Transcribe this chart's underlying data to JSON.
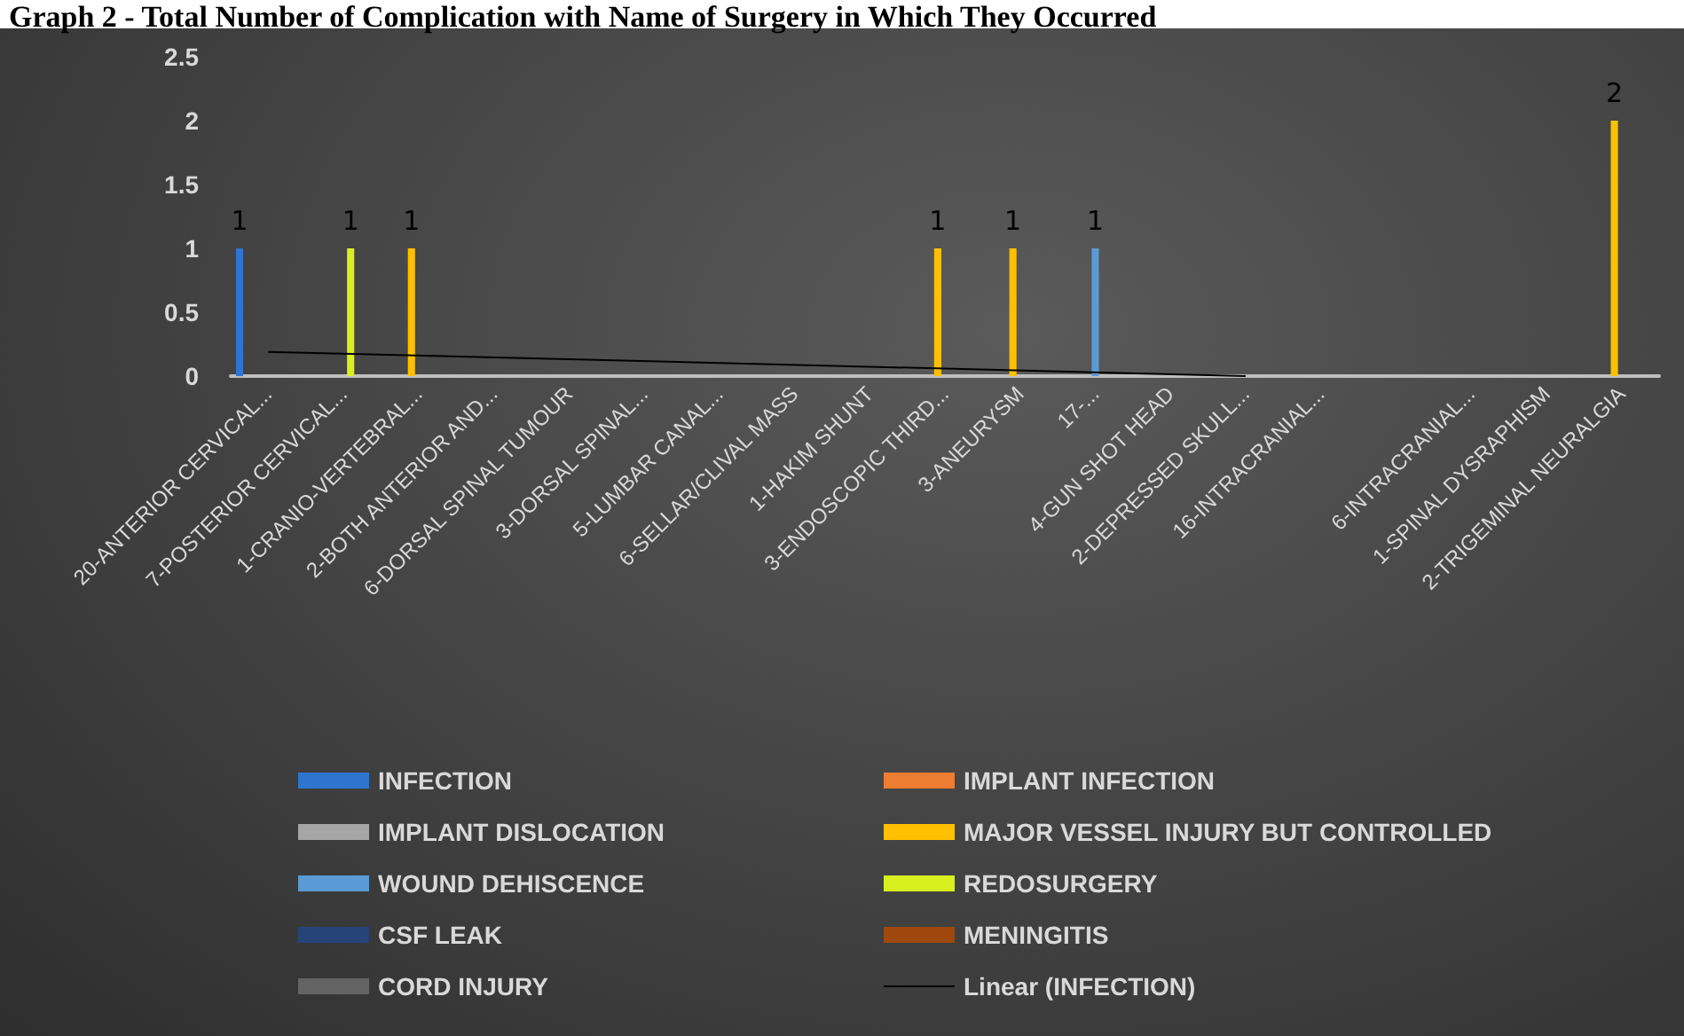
{
  "chart_data": {
    "type": "bar",
    "title": "Graph 2 - Total Number of Complication with Name of Surgery in Which They Occurred",
    "categories": [
      "20-ANTERIOR CERVICAL...",
      "7-POSTERIOR CERVICAL...",
      "1-CRANIO-VERTEBRAL...",
      "2-BOTH ANTERIOR AND...",
      "6-DORSAL SPINAL TUMOUR",
      "3-DORSAL SPINAL...",
      "5-LUMBAR CANAL...",
      "6-SELLAR/CLIVAL MASS",
      "1-HAKIM SHUNT",
      "3-ENDOSCOPIC THIRD...",
      "3-ANEURYSM",
      "17-...",
      "4-GUN SHOT HEAD",
      "2-DEPRESSED SKULL...",
      "16-INTRACRANIAL...",
      null,
      "6-INTRACRANIAL...",
      "1-SPINAL DYSRAPHISM",
      "2-TRIGEMINAL NEURALGIA"
    ],
    "series": [
      {
        "name": "INFECTION",
        "color": "#2e75d0",
        "values": [
          1,
          null,
          null,
          null,
          null,
          null,
          null,
          null,
          null,
          null,
          null,
          null,
          null,
          null,
          null,
          null,
          null,
          null,
          null
        ],
        "value_labels": [
          "1",
          null,
          null,
          null,
          null,
          null,
          null,
          null,
          null,
          null,
          null,
          null,
          null,
          null,
          null,
          null,
          null,
          null,
          null
        ]
      },
      {
        "name": "IMPLANT INFECTION",
        "color": "#ed7d31",
        "values": [
          null,
          null,
          null,
          null,
          null,
          null,
          null,
          null,
          null,
          null,
          null,
          null,
          null,
          null,
          null,
          null,
          null,
          null,
          null
        ]
      },
      {
        "name": "IMPLANT DISLOCATION",
        "color": "#a5a5a5",
        "values": [
          null,
          null,
          null,
          null,
          null,
          null,
          null,
          null,
          null,
          null,
          null,
          null,
          null,
          null,
          null,
          null,
          null,
          null,
          null
        ]
      },
      {
        "name": "MAJOR VESSEL INJURY BUT CONTROLLED",
        "color": "#ffc000",
        "values": [
          null,
          null,
          1,
          null,
          null,
          null,
          null,
          null,
          null,
          1,
          1,
          null,
          null,
          null,
          null,
          null,
          null,
          null,
          2
        ],
        "value_labels": [
          null,
          null,
          "1",
          null,
          null,
          null,
          null,
          null,
          null,
          "1",
          "1",
          null,
          null,
          null,
          null,
          null,
          null,
          null,
          "2"
        ]
      },
      {
        "name": "WOUND DEHISCENCE",
        "color": "#5b9bd5",
        "values": [
          null,
          null,
          null,
          null,
          null,
          null,
          null,
          null,
          null,
          null,
          null,
          1,
          null,
          null,
          null,
          null,
          null,
          null,
          null
        ],
        "value_labels": [
          null,
          null,
          null,
          null,
          null,
          null,
          null,
          null,
          null,
          null,
          null,
          "1",
          null,
          null,
          null,
          null,
          null,
          null,
          null
        ]
      },
      {
        "name": "REDOSURGERY",
        "color": "#d8f020",
        "values": [
          null,
          1,
          null,
          null,
          null,
          null,
          null,
          null,
          null,
          null,
          null,
          null,
          null,
          null,
          null,
          null,
          null,
          null,
          null
        ],
        "value_labels": [
          null,
          "1",
          null,
          null,
          null,
          null,
          null,
          null,
          null,
          null,
          null,
          null,
          null,
          null,
          null,
          null,
          null,
          null,
          null
        ]
      },
      {
        "name": "CSF LEAK",
        "color": "#264478",
        "values": [
          null,
          null,
          null,
          null,
          null,
          null,
          null,
          null,
          null,
          null,
          null,
          null,
          null,
          null,
          null,
          null,
          null,
          null,
          null
        ]
      },
      {
        "name": "MENINGITIS",
        "color": "#9e480e",
        "values": [
          null,
          null,
          null,
          null,
          null,
          null,
          null,
          null,
          null,
          null,
          null,
          null,
          null,
          null,
          null,
          null,
          null,
          null,
          null
        ]
      },
      {
        "name": "CORD INJURY",
        "color": "#636363",
        "values": [
          null,
          null,
          null,
          null,
          null,
          null,
          null,
          null,
          null,
          null,
          null,
          null,
          null,
          null,
          null,
          null,
          null,
          null,
          null
        ]
      },
      {
        "name": "Linear (INFECTION)",
        "type": "line",
        "color": "#000000",
        "values": [
          0.19,
          null,
          null,
          null,
          null,
          null,
          null,
          null,
          null,
          null,
          null,
          null,
          null,
          0,
          null,
          null,
          null,
          null,
          null
        ]
      }
    ],
    "ylim": [
      0,
      2.5
    ],
    "yticks": [
      0,
      0.5,
      1,
      1.5,
      2,
      2.5
    ],
    "grid": false,
    "legend": "bottom",
    "marker": "none"
  }
}
